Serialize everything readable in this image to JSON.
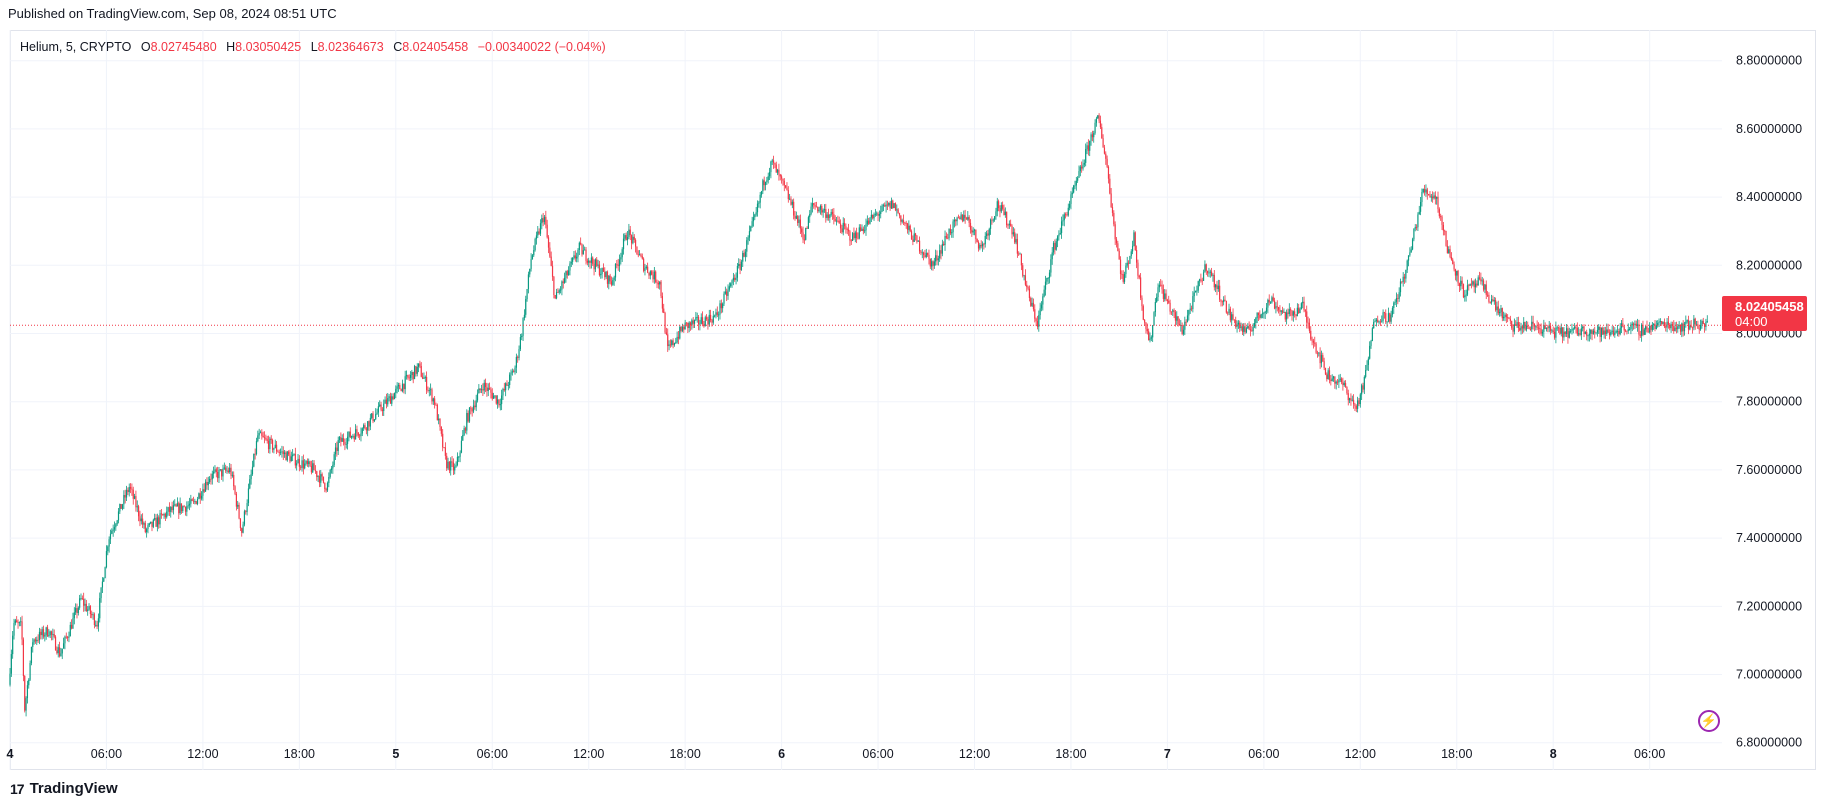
{
  "header": {
    "published": "Published on TradingView.com, Sep 08, 2024 08:51 UTC"
  },
  "legend": {
    "symbol": "Helium, 5, CRYPTO",
    "open_label": "O",
    "open": "8.02745480",
    "high_label": "H",
    "high": "8.03050425",
    "low_label": "L",
    "low": "8.02364673",
    "close_label": "C",
    "close": "8.02405458",
    "change": "−0.00340022 (−0.04%)"
  },
  "price_tag": {
    "price": "8.02405458",
    "countdown": "04:00"
  },
  "footer": {
    "brand": "TradingView",
    "logo_mark": "17"
  },
  "icons": {
    "lightning": "lightning-icon",
    "logo": "tradingview-logo-icon"
  },
  "colors": {
    "up": "#089981",
    "down": "#f23645",
    "grid": "#f0f3fa",
    "text": "#131722",
    "price_line": "#f23645"
  },
  "chart_data": {
    "type": "candlestick",
    "title": "",
    "y_ticks": [
      6.8,
      7.0,
      7.2,
      7.4,
      7.6,
      7.8,
      8.0,
      8.2,
      8.4,
      8.6,
      8.8
    ],
    "y_tick_labels": [
      "6.80000000",
      "7.00000000",
      "7.20000000",
      "7.40000000",
      "7.60000000",
      "7.80000000",
      "8.00000000",
      "8.20000000",
      "8.40000000",
      "8.60000000",
      "8.80000000"
    ],
    "ylim": [
      6.72,
      8.89
    ],
    "x_ticks": [
      {
        "label": "4",
        "bold": true,
        "hour": 0
      },
      {
        "label": "06:00",
        "bold": false,
        "hour": 6
      },
      {
        "label": "12:00",
        "bold": false,
        "hour": 12
      },
      {
        "label": "18:00",
        "bold": false,
        "hour": 18
      },
      {
        "label": "5",
        "bold": true,
        "hour": 24
      },
      {
        "label": "06:00",
        "bold": false,
        "hour": 30
      },
      {
        "label": "12:00",
        "bold": false,
        "hour": 36
      },
      {
        "label": "18:00",
        "bold": false,
        "hour": 42
      },
      {
        "label": "6",
        "bold": true,
        "hour": 48
      },
      {
        "label": "06:00",
        "bold": false,
        "hour": 54
      },
      {
        "label": "12:00",
        "bold": false,
        "hour": 60
      },
      {
        "label": "18:00",
        "bold": false,
        "hour": 66
      },
      {
        "label": "7",
        "bold": true,
        "hour": 72
      },
      {
        "label": "06:00",
        "bold": false,
        "hour": 78
      },
      {
        "label": "12:00",
        "bold": false,
        "hour": 84
      },
      {
        "label": "18:00",
        "bold": false,
        "hour": 90
      },
      {
        "label": "8",
        "bold": true,
        "hour": 96
      },
      {
        "label": "06:00",
        "bold": false,
        "hour": 102
      }
    ],
    "xlim_hours": [
      0,
      106.5
    ],
    "last_price": 8.02405458,
    "price_path": [
      [
        0,
        6.97
      ],
      [
        0.3,
        7.15
      ],
      [
        0.8,
        7.14
      ],
      [
        1.0,
        6.9
      ],
      [
        1.5,
        7.1
      ],
      [
        2.5,
        7.13
      ],
      [
        3.2,
        7.06
      ],
      [
        4.5,
        7.22
      ],
      [
        5.5,
        7.15
      ],
      [
        6.2,
        7.4
      ],
      [
        7.5,
        7.55
      ],
      [
        8.5,
        7.42
      ],
      [
        10.0,
        7.48
      ],
      [
        11.5,
        7.5
      ],
      [
        12.5,
        7.58
      ],
      [
        13.8,
        7.6
      ],
      [
        14.5,
        7.42
      ],
      [
        15.5,
        7.7
      ],
      [
        17.0,
        7.65
      ],
      [
        19.0,
        7.6
      ],
      [
        19.8,
        7.55
      ],
      [
        20.5,
        7.68
      ],
      [
        22.0,
        7.72
      ],
      [
        24.5,
        7.85
      ],
      [
        25.5,
        7.9
      ],
      [
        26.5,
        7.8
      ],
      [
        27.2,
        7.62
      ],
      [
        27.8,
        7.6
      ],
      [
        28.5,
        7.75
      ],
      [
        29.5,
        7.85
      ],
      [
        30.5,
        7.8
      ],
      [
        31.5,
        7.9
      ],
      [
        31.9,
        8.0
      ],
      [
        32.5,
        8.22
      ],
      [
        33.3,
        8.35
      ],
      [
        34.0,
        8.1
      ],
      [
        35.5,
        8.25
      ],
      [
        36.5,
        8.2
      ],
      [
        37.5,
        8.15
      ],
      [
        38.5,
        8.3
      ],
      [
        39.5,
        8.2
      ],
      [
        40.5,
        8.15
      ],
      [
        41.0,
        7.95
      ],
      [
        42.0,
        8.02
      ],
      [
        44.0,
        8.05
      ],
      [
        45.5,
        8.2
      ],
      [
        46.5,
        8.35
      ],
      [
        47.0,
        8.45
      ],
      [
        47.5,
        8.5
      ],
      [
        48.5,
        8.4
      ],
      [
        49.5,
        8.28
      ],
      [
        50.0,
        8.38
      ],
      [
        51.0,
        8.35
      ],
      [
        52.5,
        8.28
      ],
      [
        54.0,
        8.35
      ],
      [
        55.0,
        8.38
      ],
      [
        56.0,
        8.3
      ],
      [
        57.5,
        8.2
      ],
      [
        58.5,
        8.3
      ],
      [
        59.5,
        8.35
      ],
      [
        60.5,
        8.25
      ],
      [
        61.5,
        8.38
      ],
      [
        62.5,
        8.3
      ],
      [
        63.5,
        8.1
      ],
      [
        64.0,
        8.03
      ],
      [
        65.0,
        8.25
      ],
      [
        66.5,
        8.45
      ],
      [
        67.5,
        8.6
      ],
      [
        67.8,
        8.63
      ],
      [
        68.3,
        8.5
      ],
      [
        68.8,
        8.3
      ],
      [
        69.3,
        8.15
      ],
      [
        70.0,
        8.28
      ],
      [
        70.6,
        8.05
      ],
      [
        71.0,
        7.97
      ],
      [
        71.5,
        8.15
      ],
      [
        72.5,
        8.05
      ],
      [
        73.0,
        8.01
      ],
      [
        74.5,
        8.2
      ],
      [
        75.0,
        8.15
      ],
      [
        76.0,
        8.05
      ],
      [
        77.0,
        8.0
      ],
      [
        78.5,
        8.1
      ],
      [
        79.5,
        8.05
      ],
      [
        80.5,
        8.08
      ],
      [
        81.0,
        8.0
      ],
      [
        82.0,
        7.88
      ],
      [
        83.0,
        7.85
      ],
      [
        83.8,
        7.78
      ],
      [
        84.3,
        7.85
      ],
      [
        85.0,
        8.05
      ],
      [
        86.0,
        8.05
      ],
      [
        87.0,
        8.2
      ],
      [
        88.0,
        8.42
      ],
      [
        88.8,
        8.4
      ],
      [
        89.5,
        8.25
      ],
      [
        90.5,
        8.12
      ],
      [
        91.5,
        8.15
      ],
      [
        92.5,
        8.08
      ],
      [
        93.5,
        8.02
      ],
      [
        95.0,
        8.02
      ],
      [
        96.5,
        8.0
      ],
      [
        98.0,
        8.01
      ],
      [
        99.5,
        8.0
      ],
      [
        100.5,
        8.02
      ],
      [
        101.5,
        8.01
      ],
      [
        103.0,
        8.03
      ],
      [
        104.0,
        8.02
      ],
      [
        105.0,
        8.03
      ],
      [
        105.6,
        8.024
      ]
    ]
  }
}
